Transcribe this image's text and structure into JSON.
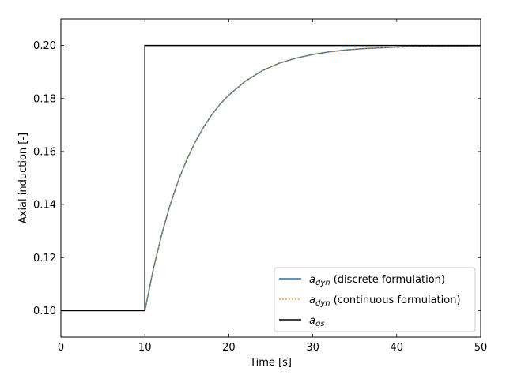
{
  "chart_data": {
    "type": "line",
    "title": "",
    "xlabel": "Time [s]",
    "ylabel": "Axial induction [-]",
    "xlim": [
      0,
      50
    ],
    "ylim": [
      0.09,
      0.21
    ],
    "xticks": [
      0,
      10,
      20,
      30,
      40,
      50
    ],
    "xtick_labels": [
      "0",
      "10",
      "20",
      "30",
      "40",
      "50"
    ],
    "yticks": [
      0.1,
      0.12,
      0.14,
      0.16,
      0.18,
      0.2
    ],
    "ytick_labels": [
      "0.10",
      "0.12",
      "0.14",
      "0.16",
      "0.18",
      "0.20"
    ],
    "grid": false,
    "legend_position": "bottom-right",
    "series": [
      {
        "name": "a_dyn (discrete formulation)",
        "legend_base": "a",
        "legend_sub": "dyn",
        "legend_rest": " (discrete formulation)",
        "color": "#1f77b4",
        "style": "solid",
        "x": [
          0,
          10,
          11,
          12,
          13,
          14,
          15,
          16,
          17,
          18,
          19,
          20,
          22,
          24,
          26,
          28,
          30,
          32,
          34,
          36,
          38,
          40,
          42,
          44,
          46,
          48,
          50
        ],
        "y": [
          0.1,
          0.1,
          0.1155,
          0.1287,
          0.1398,
          0.1491,
          0.157,
          0.1636,
          0.1692,
          0.174,
          0.178,
          0.1813,
          0.1866,
          0.1905,
          0.1933,
          0.1952,
          0.1966,
          0.1976,
          0.1983,
          0.1988,
          0.1991,
          0.1994,
          0.1996,
          0.1997,
          0.1998,
          0.1998,
          0.1999
        ]
      },
      {
        "name": "a_dyn (continuous formulation)",
        "legend_base": "a",
        "legend_sub": "dyn",
        "legend_rest": " (continuous formulation)",
        "color": "#ff7f0e",
        "style": "dotted",
        "x": [
          0,
          10,
          11,
          12,
          13,
          14,
          15,
          16,
          17,
          18,
          19,
          20,
          22,
          24,
          26,
          28,
          30,
          32,
          34,
          36,
          38,
          40,
          42,
          44,
          46,
          48,
          50
        ],
        "y": [
          0.1,
          0.1,
          0.1155,
          0.1287,
          0.1398,
          0.1491,
          0.157,
          0.1636,
          0.1692,
          0.174,
          0.178,
          0.1813,
          0.1866,
          0.1905,
          0.1933,
          0.1952,
          0.1966,
          0.1976,
          0.1983,
          0.1988,
          0.1991,
          0.1994,
          0.1996,
          0.1997,
          0.1998,
          0.1998,
          0.1999
        ]
      },
      {
        "name": "a_qs",
        "legend_base": "a",
        "legend_sub": "qs",
        "legend_rest": "",
        "color": "#000000",
        "style": "solid",
        "x": [
          0,
          10,
          10,
          50
        ],
        "y": [
          0.1,
          0.1,
          0.2,
          0.2
        ]
      }
    ]
  }
}
